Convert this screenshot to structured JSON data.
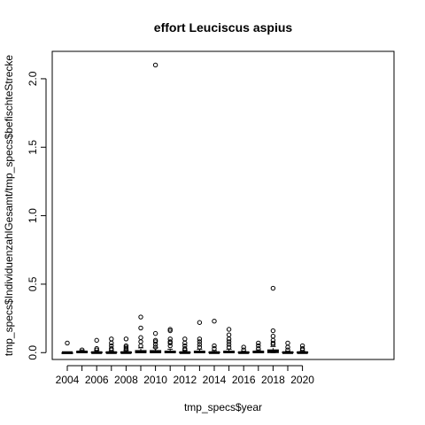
{
  "chart_data": {
    "type": "boxplot",
    "title": "effort Leuciscus aspius",
    "xlabel": "tmp_specs$year",
    "ylabel": "tmp_specs$IndividuenzahlGesamt/tmp_specs$befischteStrecke",
    "ylim": [
      -0.05,
      2.2
    ],
    "yticks": [
      0.0,
      0.5,
      1.0,
      1.5,
      2.0
    ],
    "ytick_labels": [
      "0.0",
      "0.5",
      "1.0",
      "1.5",
      "2.0"
    ],
    "xtick_labels": [
      "2004",
      "2006",
      "2008",
      "2010",
      "2012",
      "2014",
      "2016",
      "2018",
      "2020"
    ],
    "grid": false,
    "categories": [
      "2004",
      "2005",
      "2006",
      "2007",
      "2008",
      "2009",
      "2010",
      "2011",
      "2012",
      "2013",
      "2014",
      "2015",
      "2016",
      "2017",
      "2018",
      "2019",
      "2020"
    ],
    "boxes": [
      {
        "year": "2004",
        "median": 0.0,
        "q1": 0.0,
        "q3": 0.0,
        "whisker_low": 0.0,
        "whisker_high": 0.0,
        "outliers": [
          0.07
        ]
      },
      {
        "year": "2005",
        "median": 0.005,
        "q1": 0.0,
        "q3": 0.01,
        "whisker_low": 0.0,
        "whisker_high": 0.02,
        "outliers": [
          0.02
        ]
      },
      {
        "year": "2006",
        "median": 0.0,
        "q1": 0.0,
        "q3": 0.005,
        "whisker_low": 0.0,
        "whisker_high": 0.015,
        "outliers": [
          0.02,
          0.03,
          0.09
        ]
      },
      {
        "year": "2007",
        "median": 0.0,
        "q1": 0.0,
        "q3": 0.005,
        "whisker_low": 0.0,
        "whisker_high": 0.01,
        "outliers": [
          0.02,
          0.03,
          0.05,
          0.07,
          0.1
        ]
      },
      {
        "year": "2008",
        "median": 0.0,
        "q1": 0.0,
        "q3": 0.005,
        "whisker_low": 0.0,
        "whisker_high": 0.015,
        "outliers": [
          0.02,
          0.03,
          0.04,
          0.05,
          0.1
        ]
      },
      {
        "year": "2009",
        "median": 0.005,
        "q1": 0.0,
        "q3": 0.015,
        "whisker_low": 0.0,
        "whisker_high": 0.035,
        "outliers": [
          0.05,
          0.08,
          0.11,
          0.18,
          0.26
        ]
      },
      {
        "year": "2010",
        "median": 0.005,
        "q1": 0.0,
        "q3": 0.015,
        "whisker_low": 0.0,
        "whisker_high": 0.035,
        "outliers": [
          0.04,
          0.06,
          0.08,
          0.09,
          0.14,
          2.1
        ]
      },
      {
        "year": "2011",
        "median": 0.005,
        "q1": 0.0,
        "q3": 0.01,
        "whisker_low": 0.0,
        "whisker_high": 0.025,
        "outliers": [
          0.05,
          0.07,
          0.08,
          0.1,
          0.16,
          0.17
        ]
      },
      {
        "year": "2012",
        "median": 0.0,
        "q1": 0.0,
        "q3": 0.005,
        "whisker_low": 0.0,
        "whisker_high": 0.015,
        "outliers": [
          0.02,
          0.03,
          0.05,
          0.07,
          0.1
        ]
      },
      {
        "year": "2013",
        "median": 0.005,
        "q1": 0.0,
        "q3": 0.01,
        "whisker_low": 0.0,
        "whisker_high": 0.025,
        "outliers": [
          0.04,
          0.06,
          0.08,
          0.1,
          0.22
        ]
      },
      {
        "year": "2014",
        "median": 0.0,
        "q1": 0.0,
        "q3": 0.005,
        "whisker_low": 0.0,
        "whisker_high": 0.015,
        "outliers": [
          0.03,
          0.05,
          0.23
        ]
      },
      {
        "year": "2015",
        "median": 0.005,
        "q1": 0.0,
        "q3": 0.01,
        "whisker_low": 0.0,
        "whisker_high": 0.025,
        "outliers": [
          0.04,
          0.06,
          0.08,
          0.1,
          0.13,
          0.17
        ]
      },
      {
        "year": "2016",
        "median": 0.0,
        "q1": 0.0,
        "q3": 0.005,
        "whisker_low": 0.0,
        "whisker_high": 0.01,
        "outliers": [
          0.02,
          0.04
        ]
      },
      {
        "year": "2017",
        "median": 0.005,
        "q1": 0.0,
        "q3": 0.01,
        "whisker_low": 0.0,
        "whisker_high": 0.02,
        "outliers": [
          0.03,
          0.05,
          0.07
        ]
      },
      {
        "year": "2018",
        "median": 0.01,
        "q1": 0.0,
        "q3": 0.02,
        "whisker_low": 0.0,
        "whisker_high": 0.045,
        "outliers": [
          0.06,
          0.07,
          0.09,
          0.12,
          0.16,
          0.47
        ]
      },
      {
        "year": "2019",
        "median": 0.0,
        "q1": 0.0,
        "q3": 0.005,
        "whisker_low": 0.0,
        "whisker_high": 0.01,
        "outliers": [
          0.02,
          0.04,
          0.07
        ]
      },
      {
        "year": "2020",
        "median": 0.0,
        "q1": 0.0,
        "q3": 0.005,
        "whisker_low": 0.0,
        "whisker_high": 0.01,
        "outliers": [
          0.02,
          0.03,
          0.05
        ]
      }
    ],
    "colors": {
      "stroke": "#000000",
      "background": "#ffffff"
    }
  }
}
